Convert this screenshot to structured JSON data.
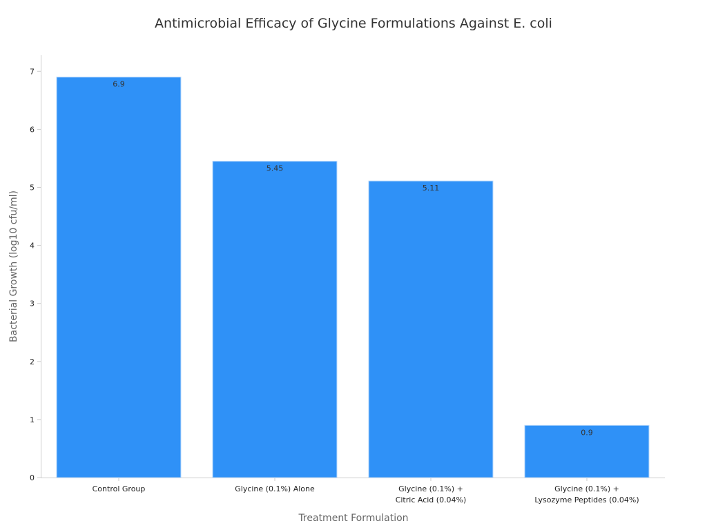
{
  "chart_data": {
    "type": "bar",
    "title": "Antimicrobial Efficacy of Glycine Formulations Against E. coli",
    "xlabel": "Treatment Formulation",
    "ylabel": "Bacterial Growth (log10 cfu/ml)",
    "categories": [
      [
        "Control Group"
      ],
      [
        "Glycine (0.1%) Alone"
      ],
      [
        "Glycine (0.1%) +",
        "Citric Acid (0.04%)"
      ],
      [
        "Glycine (0.1%) +",
        "Lysozyme Peptides (0.04%)"
      ]
    ],
    "values": [
      6.9,
      5.45,
      5.11,
      0.9
    ],
    "data_labels": [
      "6.9",
      "5.45",
      "5.11",
      "0.9"
    ],
    "yticks": [
      0,
      1,
      2,
      3,
      4,
      5,
      6,
      7
    ],
    "ylim": [
      0,
      7.25
    ],
    "bar_color": "#2f91f7",
    "grid": false,
    "legend": "none"
  }
}
